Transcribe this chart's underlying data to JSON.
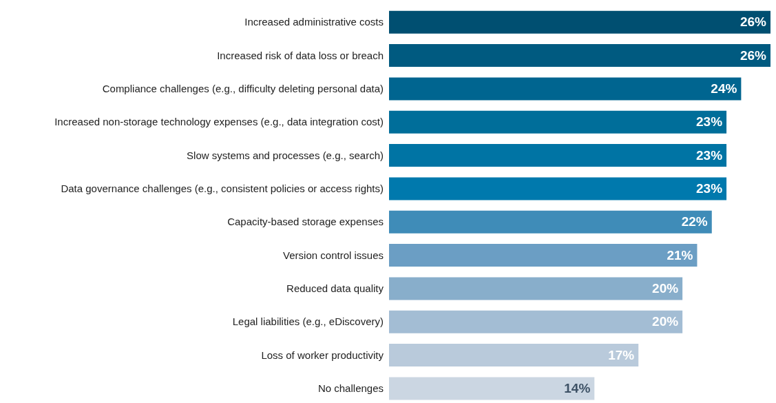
{
  "chart_data": {
    "type": "bar",
    "orientation": "horizontal",
    "categories": [
      "Increased administrative costs",
      "Increased risk of data loss or breach",
      "Compliance challenges (e.g., difficulty deleting personal data)",
      "Increased non-storage technology expenses (e.g., data integration cost)",
      "Slow systems and processes (e.g., search)",
      "Data governance challenges (e.g., consistent policies or access rights)",
      "Capacity-based storage expenses",
      "Version control issues",
      "Reduced data quality",
      "Legal liabilities (e.g., eDiscovery)",
      "Loss of worker productivity",
      "No challenges"
    ],
    "values": [
      26,
      26,
      24,
      23,
      23,
      23,
      22,
      21,
      20,
      20,
      17,
      14
    ],
    "value_labels": [
      "26%",
      "26%",
      "24%",
      "23%",
      "23%",
      "23%",
      "22%",
      "21%",
      "20%",
      "20%",
      "17%",
      "14%"
    ],
    "colors": [
      "#004f71",
      "#005a80",
      "#006590",
      "#006e9a",
      "#0074a4",
      "#0079ad",
      "#3f8cb8",
      "#6b9ec4",
      "#88aecb",
      "#a3bdd4",
      "#b9cadb",
      "#cbd6e2"
    ]
  }
}
